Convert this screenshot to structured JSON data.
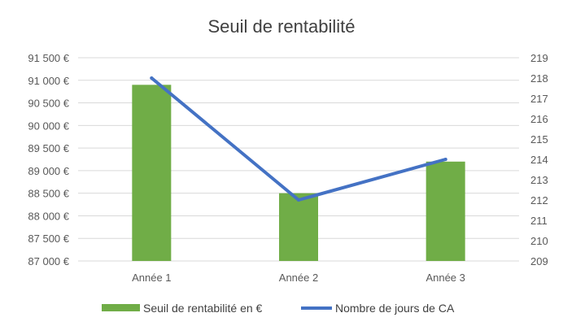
{
  "chart_data": {
    "type": "bar",
    "title": "Seuil de rentabilité",
    "categories": [
      "Année 1",
      "Année 2",
      "Année 3"
    ],
    "series": [
      {
        "name": "Seuil de rentabilité en €",
        "type": "bar",
        "axis": "left",
        "color": "#70ad47",
        "values": [
          90900,
          88500,
          89200
        ]
      },
      {
        "name": "Nombre de jours de CA",
        "type": "line",
        "axis": "right",
        "color": "#4472c4",
        "values": [
          218,
          212,
          214
        ]
      }
    ],
    "y_left": {
      "min": 87000,
      "max": 91500,
      "step": 500,
      "tick_labels": [
        "87 000 €",
        "87 500 €",
        "88 000 €",
        "88 500 €",
        "89 000 €",
        "89 500 €",
        "90 000 €",
        "90 500 €",
        "91 000 €",
        "91 500 €"
      ]
    },
    "y_right": {
      "min": 209,
      "max": 219,
      "step": 1,
      "tick_labels": [
        "209",
        "210",
        "211",
        "212",
        "213",
        "214",
        "215",
        "216",
        "217",
        "218",
        "219"
      ]
    },
    "grid": true,
    "legend_position": "bottom",
    "gridline_color": "#d9d9d9"
  }
}
